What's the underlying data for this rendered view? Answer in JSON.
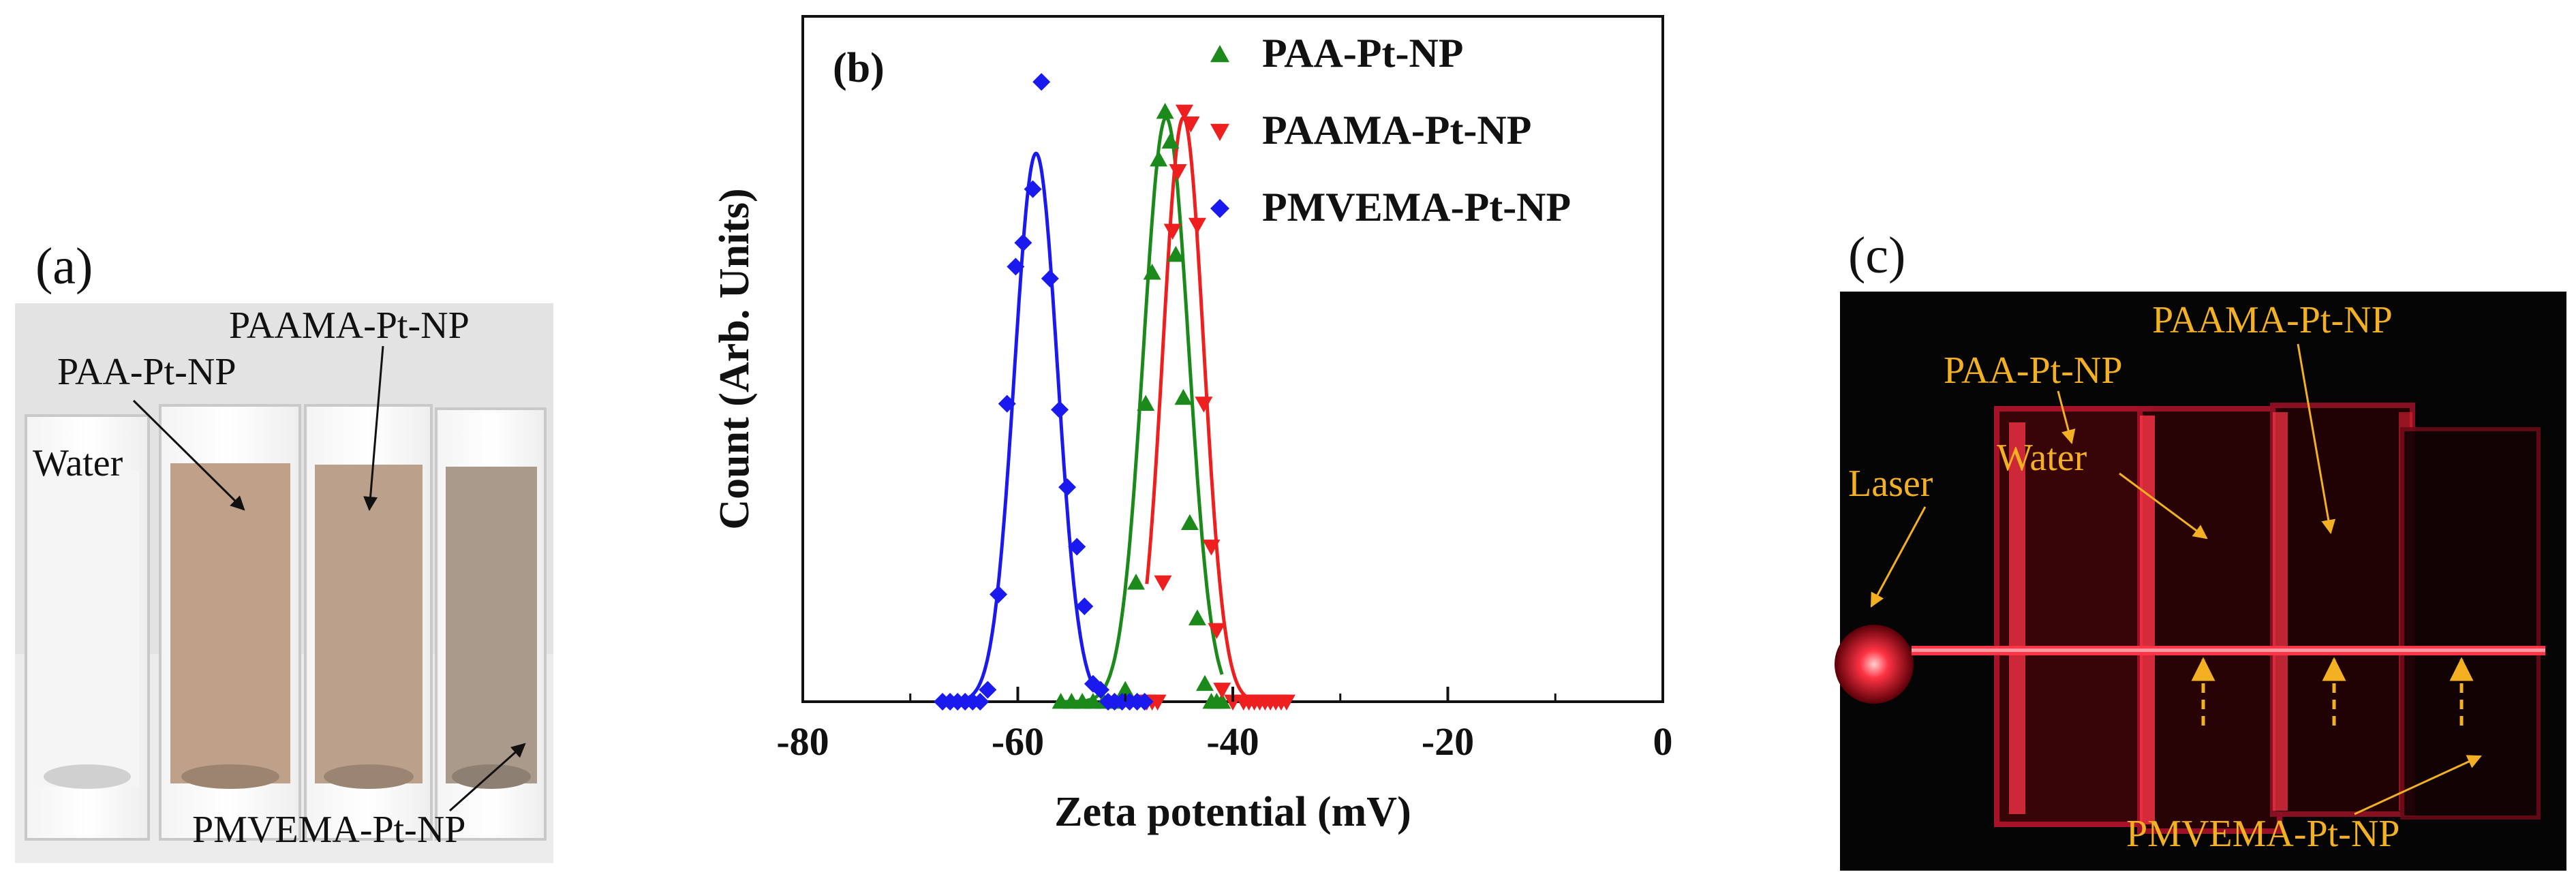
{
  "panel_a": {
    "label": "(a)",
    "cuvettes": [
      "Water",
      "PAA-Pt-NP",
      "PAAMA-Pt-NP",
      "PMVEMA-Pt-NP"
    ],
    "annotations": {
      "water": "Water",
      "paa": "PAA-Pt-NP",
      "paama": "PAAMA-Pt-NP",
      "pmvema": "PMVEMA-Pt-NP"
    },
    "colors": {
      "water": "#e8e8e8",
      "paa": "#bfa089",
      "paama": "#bba08b",
      "pmvema": "#a99a8c",
      "background": "#dcdcdc"
    }
  },
  "chart_data": {
    "type": "scatter",
    "panel_label": "(b)",
    "title": "",
    "xlabel": "Zeta potential (mV)",
    "ylabel": "Count (Arb. Units)",
    "xlim": [
      -80,
      0
    ],
    "ylim": [
      0,
      1.15
    ],
    "xticks": [
      -80,
      -60,
      -40,
      -20,
      0
    ],
    "x_tick_labels": [
      "-80",
      "-60",
      "-40",
      "-20",
      "0"
    ],
    "grid": false,
    "legend_position": "top-right",
    "series": [
      {
        "name": "PAA-Pt-NP",
        "color": "#1b8a1b",
        "marker": "triangle-up",
        "fit": {
          "type": "gaussian",
          "center": -46.2,
          "sigma": 2.1,
          "amplitude": 0.98
        },
        "x": [
          -56,
          -55,
          -54,
          -53,
          -52,
          -51,
          -50,
          -49,
          -48.1,
          -47.5,
          -46.9,
          -46.3,
          -45.8,
          -45.3,
          -44.6,
          -44,
          -43.3,
          -42.6,
          -42,
          -41.5,
          -41
        ],
        "y": [
          0,
          0,
          0,
          0,
          0,
          0,
          0.02,
          0.2,
          0.5,
          0.72,
          0.91,
          0.99,
          0.94,
          0.75,
          0.51,
          0.3,
          0.14,
          0.03,
          0,
          0,
          0
        ]
      },
      {
        "name": "PAAMA-Pt-NP",
        "color": "#ee1f1f",
        "marker": "triangle-down",
        "fit": {
          "type": "gaussian",
          "center": -44.6,
          "sigma": 1.9,
          "amplitude": 0.98
        },
        "x": [
          -48,
          -47.5,
          -47,
          -46.5,
          -45.6,
          -45.1,
          -44.5,
          -43.9,
          -43.3,
          -42.7,
          -42,
          -41.5,
          -41,
          -40,
          -39,
          -38.5,
          -38,
          -37.5,
          -37,
          -36.5,
          -36,
          -35.5,
          -35
        ],
        "y": [
          0,
          0,
          0,
          0.2,
          0.79,
          0.89,
          0.99,
          0.97,
          0.8,
          0.5,
          0.26,
          0.12,
          0.02,
          0,
          0,
          0,
          0,
          0,
          0,
          0,
          0,
          0,
          0
        ]
      },
      {
        "name": "PMVEMA-Pt-NP",
        "color": "#1a1aee",
        "marker": "diamond",
        "fit": {
          "type": "gaussian",
          "center": -58.3,
          "sigma": 2.0,
          "amplitude": 0.92
        },
        "x": [
          -67,
          -66.3,
          -65.6,
          -64.9,
          -64.2,
          -63.5,
          -62.8,
          -61.8,
          -61,
          -60.2,
          -59.5,
          -58.6,
          -57.8,
          -57,
          -56.1,
          -55.4,
          -54.5,
          -53.8,
          -53,
          -52.3,
          -51.6,
          -51,
          -50.3,
          -49.6,
          -48.9,
          -48.2
        ],
        "y": [
          0,
          0,
          0,
          0,
          0,
          0,
          0.02,
          0.18,
          0.5,
          0.73,
          0.77,
          0.86,
          1.04,
          0.71,
          0.49,
          0.36,
          0.26,
          0.16,
          0.03,
          0.02,
          0,
          0,
          0,
          0,
          0,
          0
        ]
      }
    ]
  },
  "panel_c": {
    "label": "(c)",
    "annotations": {
      "laser": "Laser",
      "water": "Water",
      "paa": "PAA-Pt-NP",
      "paama": "PAAMA-Pt-NP",
      "pmvema": "PMVEMA-Pt-NP"
    },
    "colors": {
      "background": "#050505",
      "beam": "#ff2a3c",
      "label": "#f2b022"
    }
  }
}
